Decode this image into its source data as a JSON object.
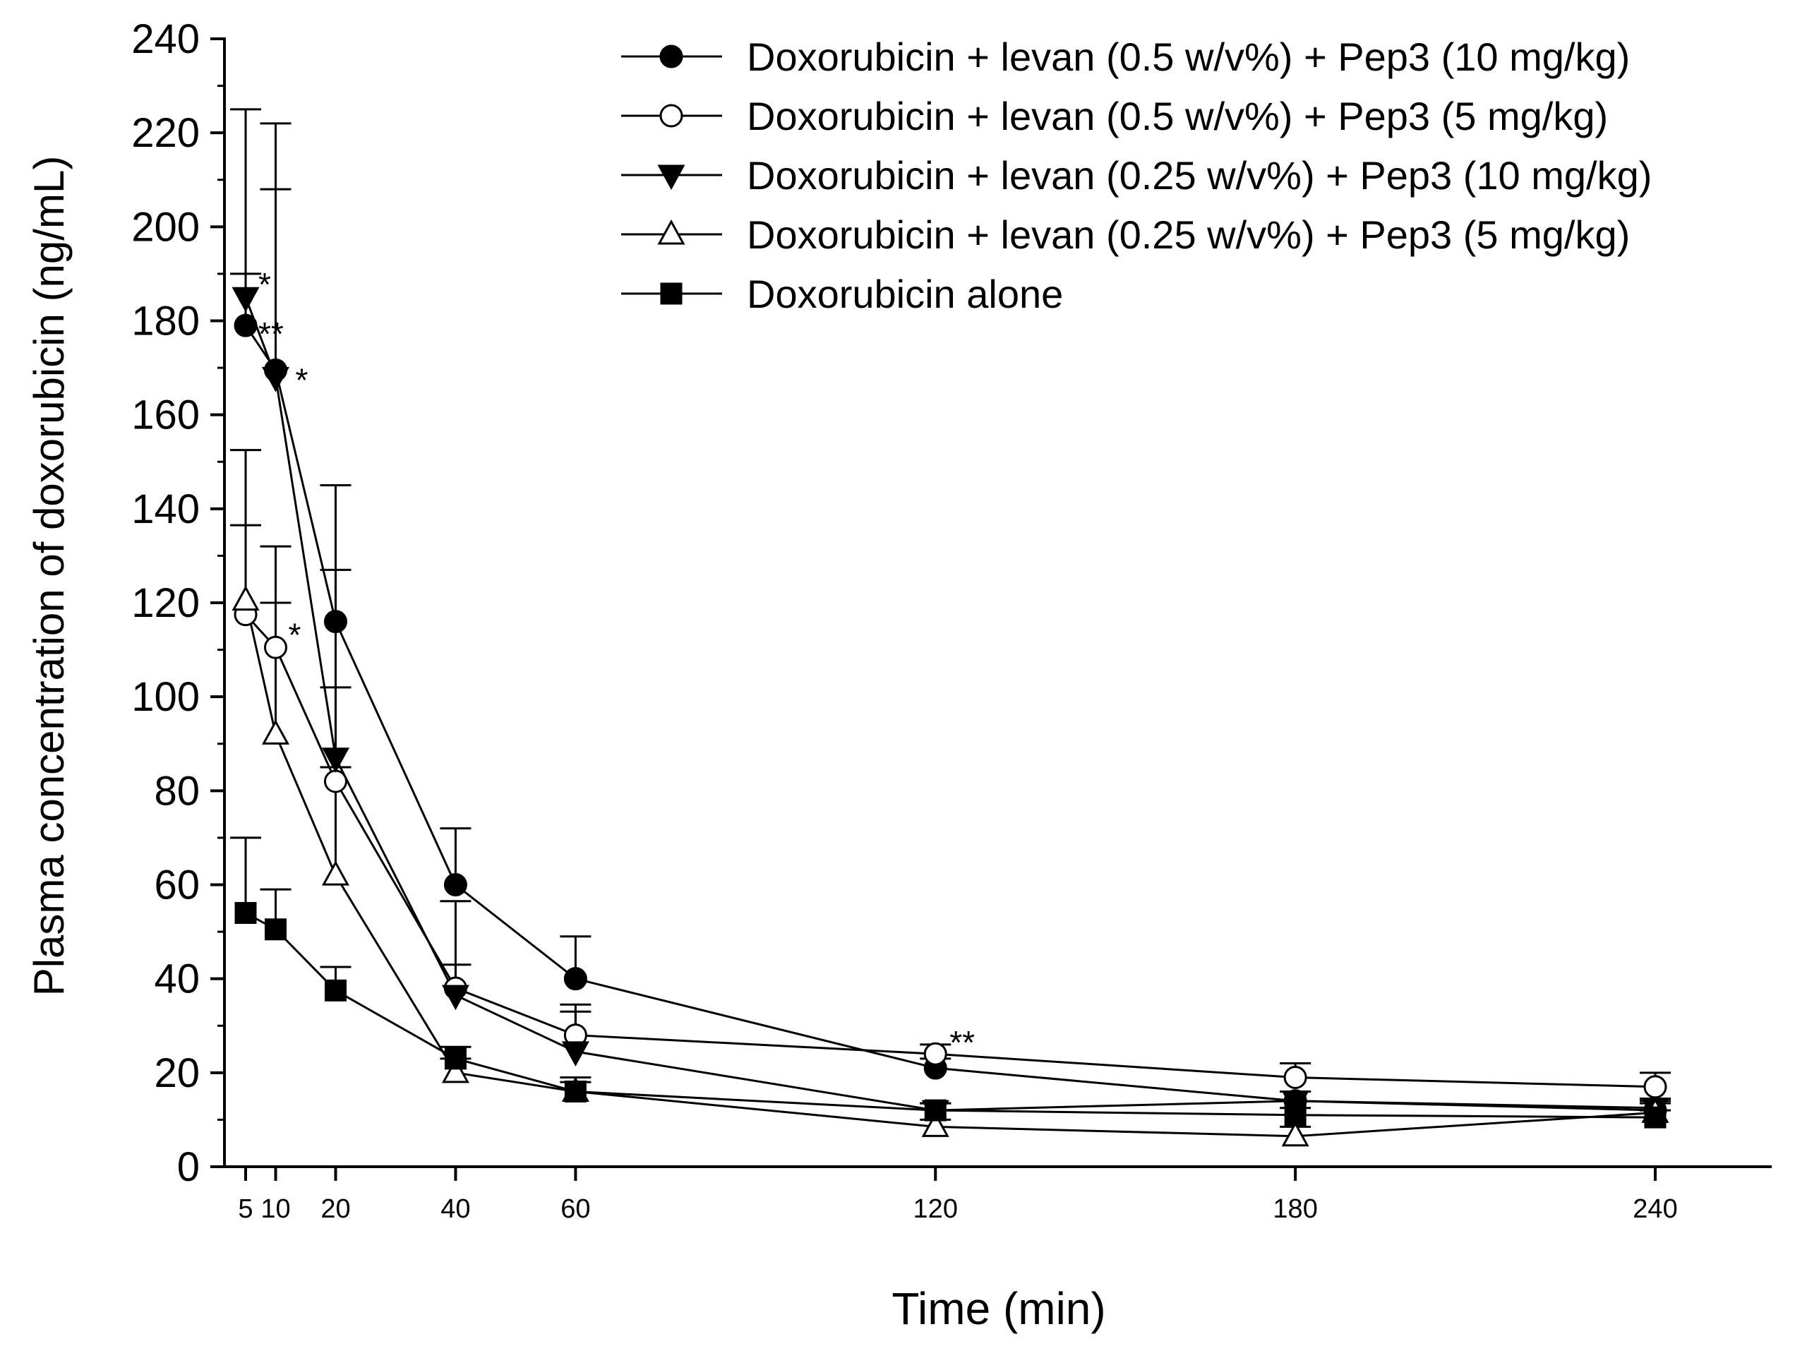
{
  "chart_data": {
    "type": "line",
    "title": "",
    "xlabel": "Time (min)",
    "ylabel": "Plasma concentration of doxorubicin (ng/mL)",
    "xlim": [
      0,
      255
    ],
    "ylim": [
      0,
      240
    ],
    "x_ticks": [
      5,
      10,
      20,
      40,
      60,
      120,
      180,
      240
    ],
    "y_ticks": [
      0,
      20,
      40,
      60,
      80,
      100,
      120,
      140,
      160,
      180,
      200,
      220,
      240
    ],
    "grid": false,
    "legend_position": "top-right",
    "x": [
      5,
      10,
      20,
      40,
      60,
      120,
      180,
      240
    ],
    "series": [
      {
        "name": "Doxorubicin + levan (0.5 w/v%) + Pep3 (10 mg/kg)",
        "marker": "filled-circle",
        "values": [
          179,
          169.5,
          116,
          60,
          40,
          21,
          14,
          12
        ],
        "error_upper": [
          11,
          38.5,
          29,
          12,
          9,
          2,
          2,
          2
        ]
      },
      {
        "name": "Doxorubicin + levan (0.5 w/v%) + Pep3 (5 mg/kg)",
        "marker": "open-circle",
        "values": [
          117.5,
          110.5,
          82,
          38,
          28,
          24,
          19,
          17
        ],
        "error_upper": [
          35,
          21.5,
          20,
          5,
          5,
          2,
          3,
          3
        ]
      },
      {
        "name": "Doxorubicin + levan (0.25 w/v%) + Pep3 (10 mg/kg)",
        "marker": "filled-triangle-down",
        "values": [
          185,
          168,
          87,
          36.5,
          24.5,
          12,
          14,
          12.5
        ],
        "error_upper": [
          40,
          54,
          40,
          20,
          10,
          1.5,
          2,
          2
        ]
      },
      {
        "name": "Doxorubicin + levan (0.25 w/v%) + Pep3 (5 mg/kg)",
        "marker": "open-triangle-up",
        "values": [
          120.5,
          92,
          62,
          20,
          16,
          8.5,
          6.5,
          11.5
        ],
        "error_upper": [
          16,
          28,
          23,
          3,
          2,
          1.5,
          2,
          2
        ]
      },
      {
        "name": "Doxorubicin alone",
        "marker": "filled-square",
        "values": [
          54,
          50.5,
          37.5,
          23,
          16,
          12,
          11,
          10.5
        ],
        "error_upper": [
          16,
          8.5,
          5,
          2.5,
          3,
          1.5,
          1.5,
          1.5
        ]
      }
    ],
    "annotations": [
      {
        "text": "*",
        "x": 5,
        "y": 185
      },
      {
        "text": "**",
        "x": 5,
        "y": 179
      },
      {
        "text": "*",
        "x": 10,
        "y": 169.5
      },
      {
        "text": "*",
        "x": 10,
        "y": 110.5
      },
      {
        "text": "**",
        "x": 120,
        "y": 24
      }
    ]
  }
}
